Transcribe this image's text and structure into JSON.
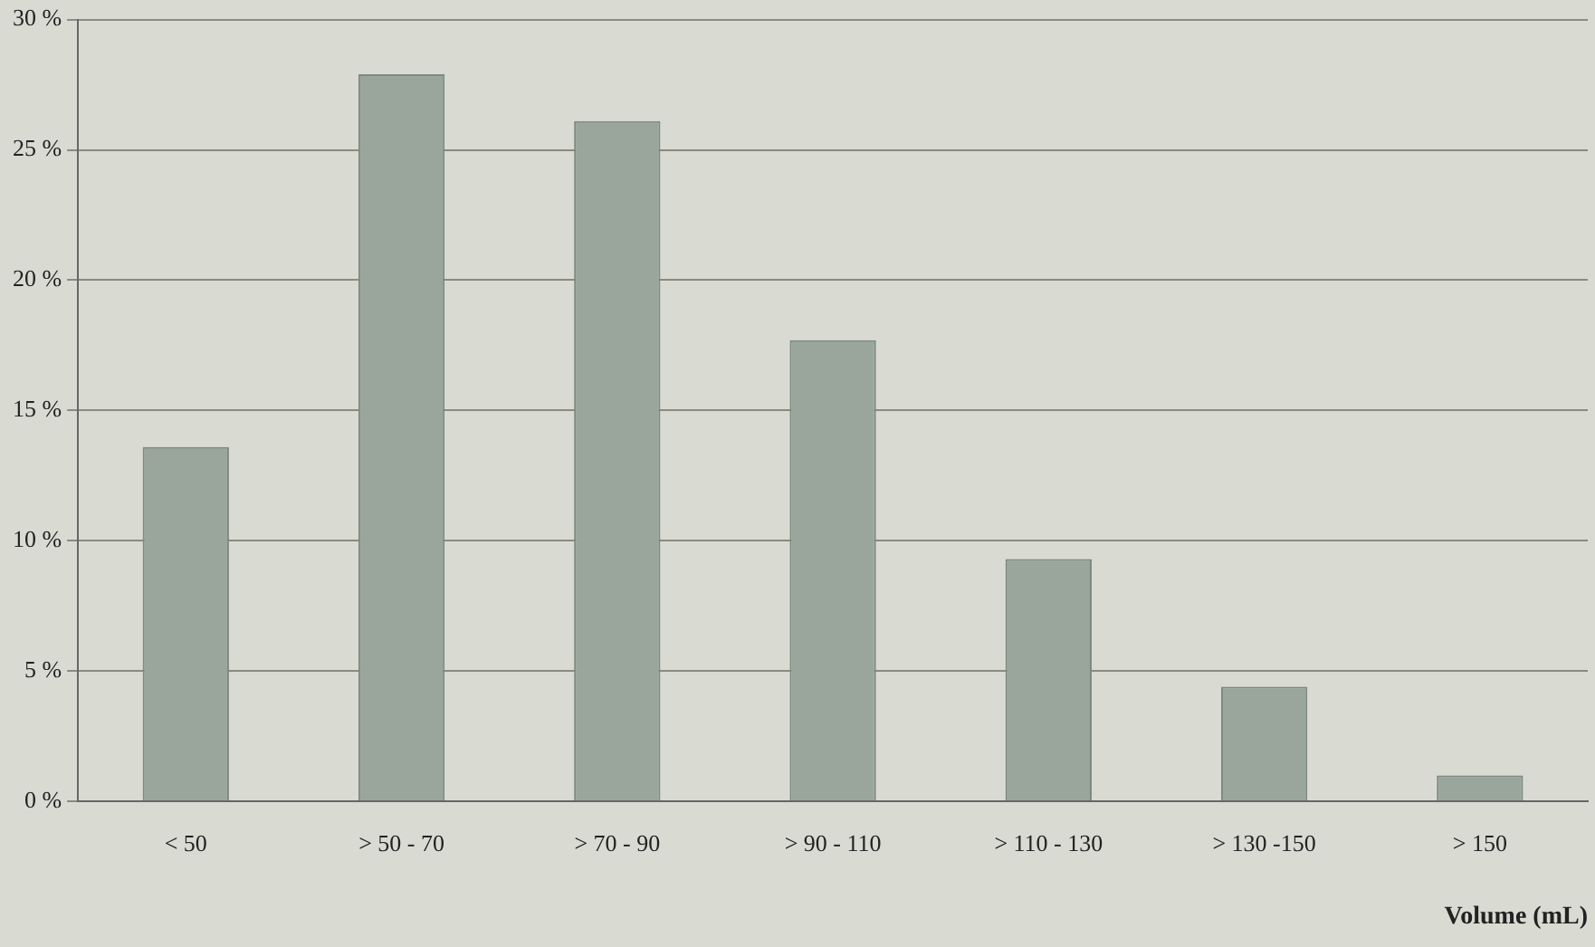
{
  "chart_data": {
    "type": "bar",
    "xlabel": "Volume (mL)",
    "categories": [
      "< 50",
      "> 50 - 70",
      "> 70 - 90",
      "> 90 - 110",
      "> 110 - 130",
      "> 130 -150",
      "> 150"
    ],
    "values": [
      13.6,
      27.9,
      26.1,
      17.7,
      9.3,
      4.4,
      1.0
    ],
    "color": "#9aa69c",
    "ylim": [
      0,
      30
    ],
    "yticks": [
      {
        "value": 0,
        "label": "0 %"
      },
      {
        "value": 5,
        "label": "5 %"
      },
      {
        "value": 10,
        "label": "10 %"
      },
      {
        "value": 15,
        "label": "15 %"
      },
      {
        "value": 20,
        "label": "20 %"
      },
      {
        "value": 25,
        "label": "25 %"
      },
      {
        "value": 30,
        "label": "30 %"
      }
    ],
    "grid": "y",
    "legend": false
  }
}
